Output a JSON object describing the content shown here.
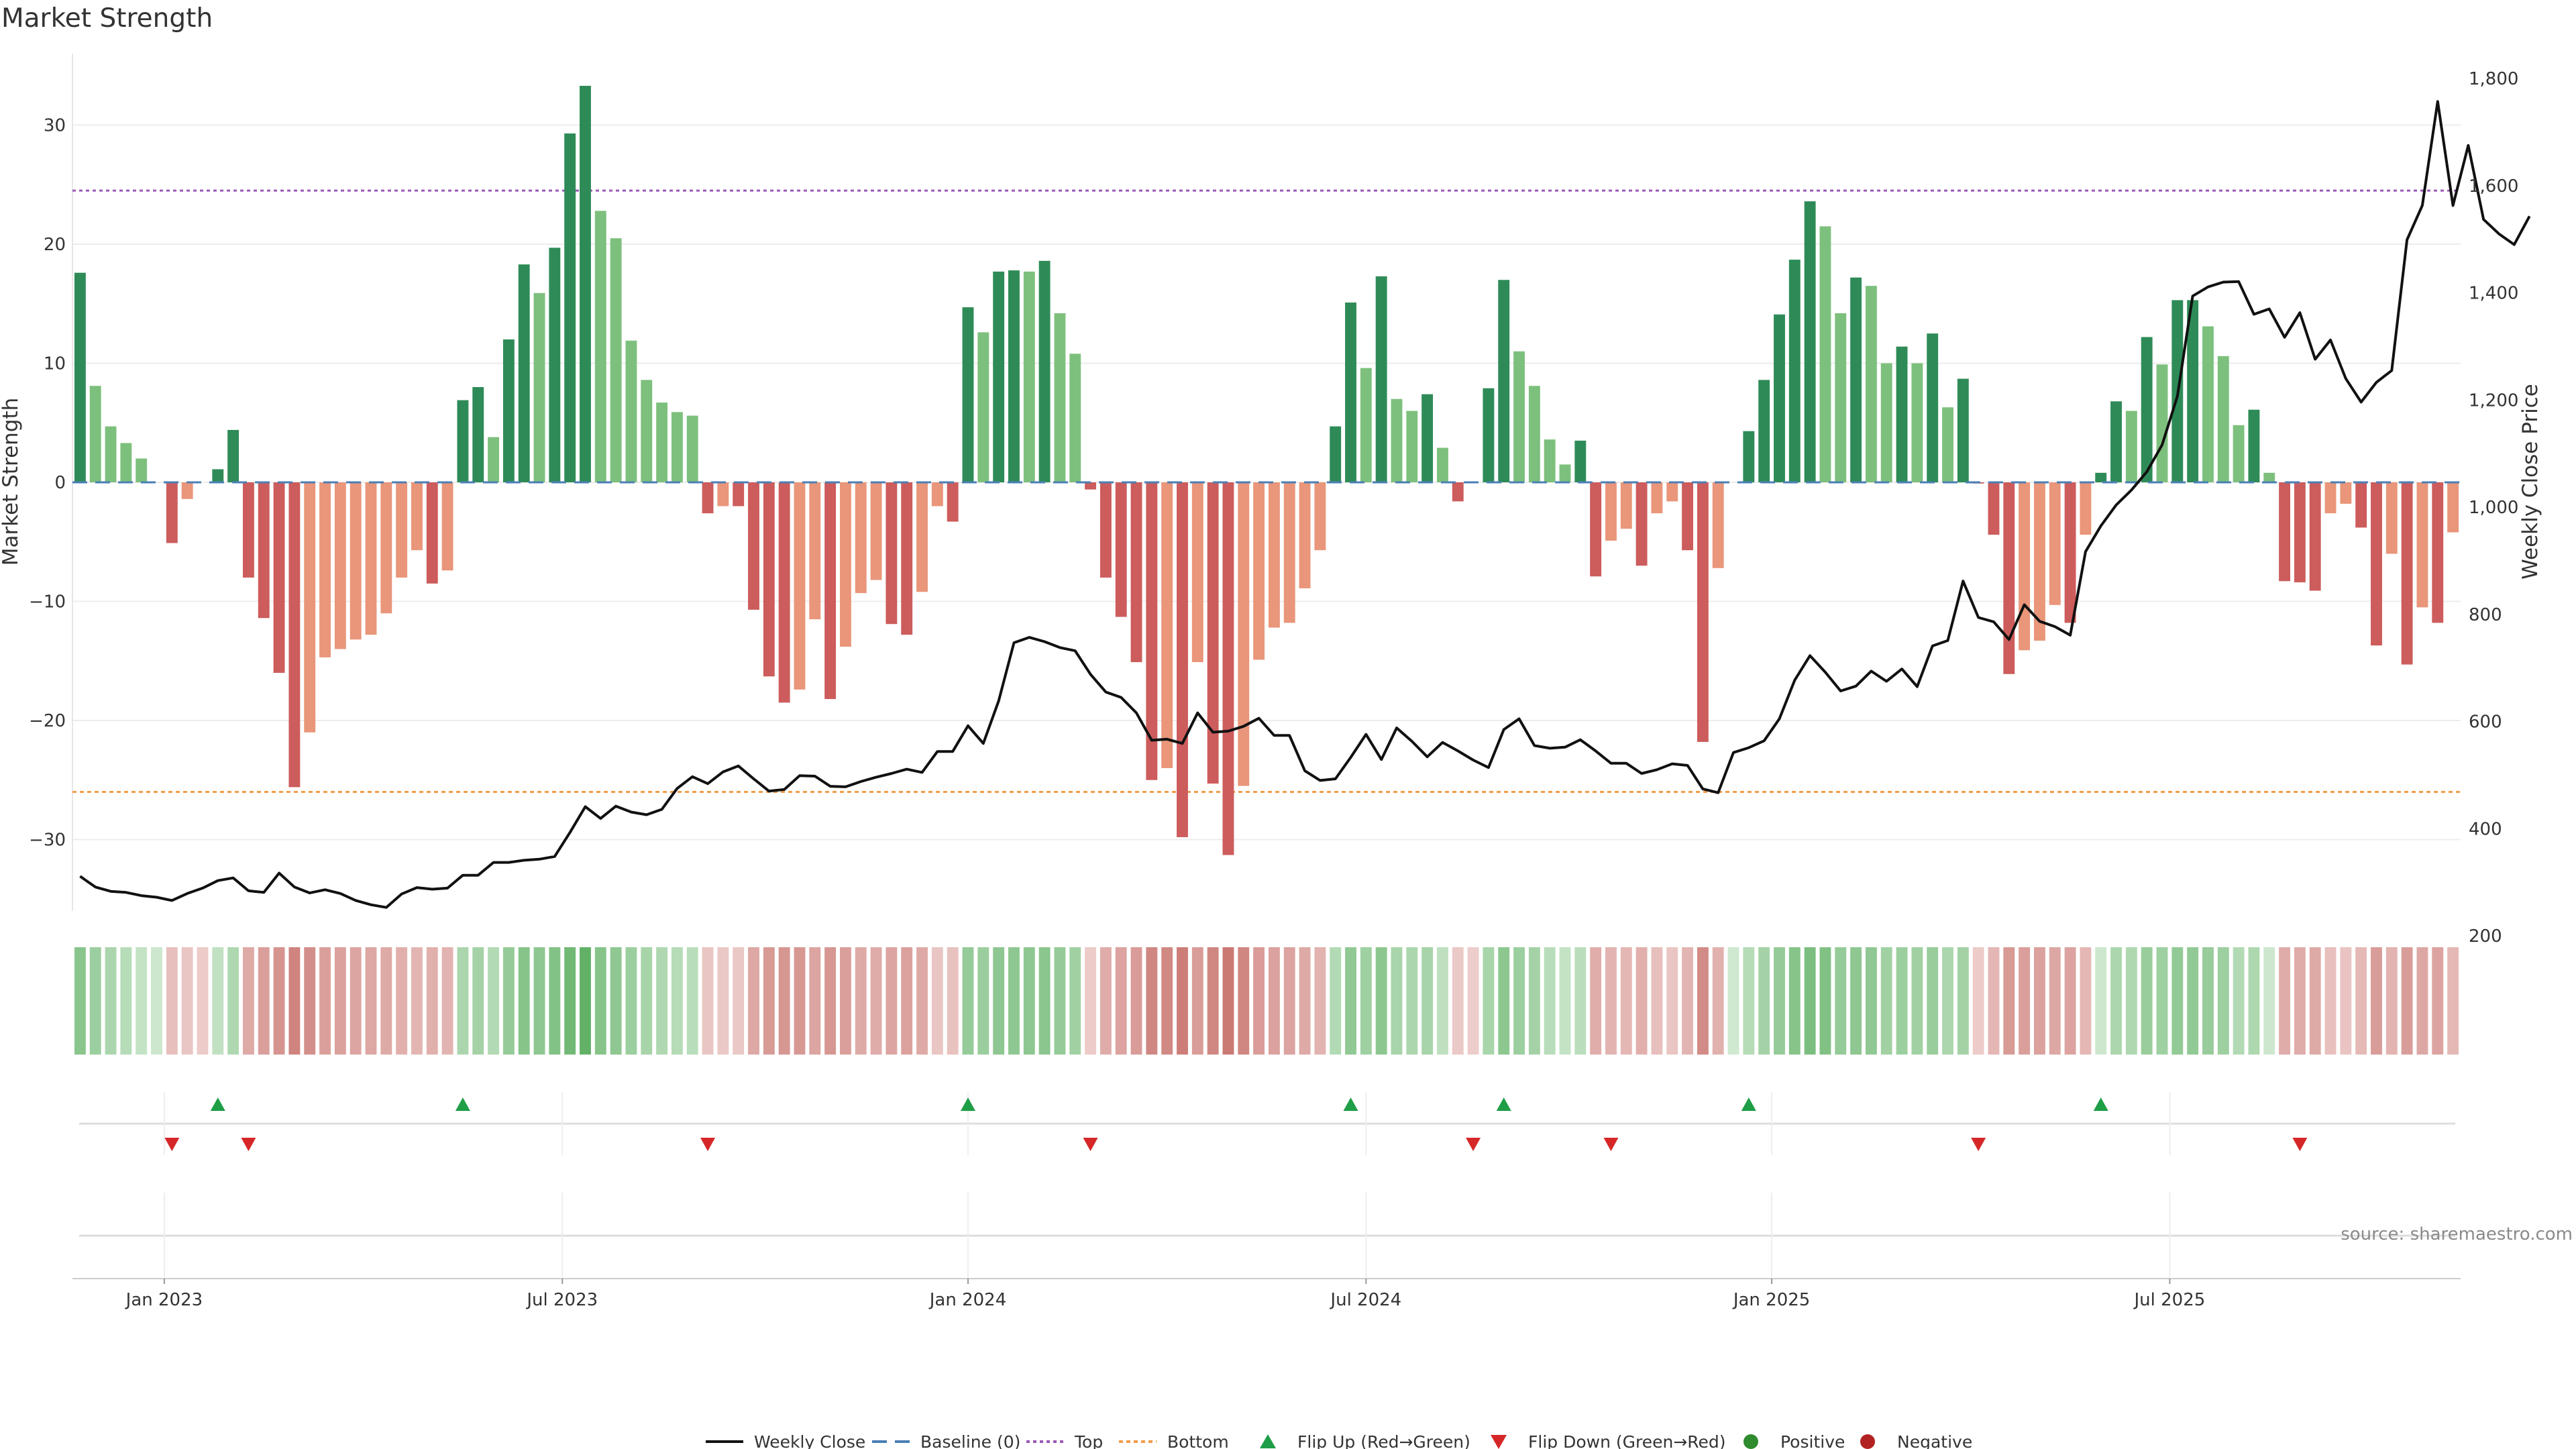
{
  "chart_data": {
    "type": "bar",
    "title": "Market Strength",
    "y_left_label": "Market Strength",
    "y_right_label": "Weekly Close Price",
    "y_left_range": [
      -36,
      36
    ],
    "y_left_ticks": [
      30,
      20,
      10,
      0,
      -10,
      -20,
      -30
    ],
    "y_right_range": [
      200,
      1800
    ],
    "y_right_ticks": [
      "1,800",
      "1,600",
      "1,400",
      "1,200",
      "1,000",
      "800",
      "600",
      "400",
      "200"
    ],
    "top_line": 24.5,
    "bottom_line": -26,
    "x_tick_labels": [
      "Jan 2023",
      "Jul 2023",
      "Jan 2024",
      "Jul 2024",
      "Jan 2025",
      "Jul 2025"
    ],
    "source": "source: sharemaestro.com",
    "colors": {
      "green_dark": "#2e8b57",
      "green_light": "#7dc07d",
      "red_dark": "#cd5c5c",
      "red_light": "#e9967a",
      "price_line": "#111111",
      "baseline": "#4a7fb5",
      "top_line": "#9b59b6",
      "bottom_line": "#f39c4a",
      "flip_up": "#1e9e46",
      "flip_down": "#d62728",
      "positive": "#2e8b2e",
      "negative": "#b22222"
    },
    "strength": [
      17.6,
      8.1,
      4.7,
      3.3,
      2.0,
      0.0,
      -5.1,
      -1.4,
      0.0,
      1.1,
      4.4,
      -8.0,
      -11.4,
      -16.0,
      -25.6,
      -21.0,
      -14.7,
      -14.0,
      -13.2,
      -12.8,
      -11.0,
      -8.0,
      -5.7,
      -8.5,
      -7.4,
      6.9,
      8.0,
      3.8,
      12.0,
      18.3,
      15.9,
      19.7,
      29.3,
      33.3,
      22.8,
      20.5,
      11.9,
      8.6,
      6.7,
      5.9,
      5.6,
      -2.6,
      -2.0,
      -2.0,
      -10.7,
      -16.3,
      -18.5,
      -17.4,
      -11.5,
      -18.2,
      -13.8,
      -9.3,
      -8.2,
      -11.9,
      -12.8,
      -9.2,
      -2.0,
      -3.3,
      14.7,
      12.6,
      17.7,
      17.8,
      17.7,
      18.6,
      14.2,
      10.8,
      -0.6,
      -8.0,
      -11.3,
      -15.1,
      -25.0,
      -24.0,
      -29.8,
      -15.1,
      -25.3,
      -31.3,
      -25.5,
      -14.9,
      -12.2,
      -11.8,
      -8.9,
      -5.7,
      4.7,
      15.1,
      9.6,
      17.3,
      7.0,
      6.0,
      7.4,
      2.9,
      -1.6,
      0.0,
      7.9,
      17.0,
      11.0,
      8.1,
      3.6,
      1.5,
      3.5,
      -7.9,
      -4.9,
      -3.9,
      -7.0,
      -2.6,
      -1.6,
      -5.7,
      -21.8,
      -7.2,
      0.0,
      4.3,
      8.6,
      14.1,
      18.7,
      23.6,
      21.5,
      14.2,
      17.2,
      16.5,
      10.0,
      11.4,
      10.0,
      12.5,
      6.3,
      8.7,
      -0.1,
      -4.4,
      -16.1,
      -14.1,
      -13.3,
      -10.3,
      -11.8,
      -4.4,
      0.8,
      6.8,
      6.0,
      12.2,
      9.9,
      15.3,
      15.3,
      13.1,
      10.6,
      4.8,
      6.1,
      0.8,
      -8.3,
      -8.4,
      -9.1,
      -2.6,
      -1.8,
      -3.8,
      -13.7,
      -6.0,
      -15.3,
      -10.5,
      -11.8,
      -4.2
    ],
    "price": [
      311,
      291,
      283,
      281,
      275,
      272,
      266,
      279,
      289,
      303,
      308,
      284,
      281,
      317,
      291,
      280,
      286,
      279,
      266,
      258,
      253,
      278,
      290,
      287,
      289,
      313,
      313,
      337,
      337,
      341,
      343,
      348,
      393,
      441,
      419,
      442,
      431,
      426,
      436,
      475,
      497,
      484,
      506,
      517,
      493,
      470,
      473,
      499,
      498,
      479,
      478,
      488,
      496,
      503,
      511,
      505,
      544,
      544,
      592,
      559,
      638,
      747,
      757,
      749,
      738,
      732,
      688,
      655,
      645,
      616,
      565,
      567,
      559,
      616,
      580,
      582,
      591,
      606,
      574,
      574,
      508,
      490,
      493,
      533,
      576,
      529,
      588,
      563,
      534,
      561,
      545,
      528,
      514,
      585,
      605,
      555,
      550,
      552,
      566,
      545,
      522,
      522,
      503,
      510,
      521,
      518,
      474,
      467,
      542,
      551,
      564,
      605,
      677,
      723,
      692,
      657,
      666,
      694,
      675,
      698,
      665,
      741,
      751,
      862,
      794,
      786,
      753,
      818,
      787,
      777,
      761,
      917,
      965,
      1004,
      1032,
      1066,
      1116,
      1207,
      1394,
      1411,
      1420,
      1421,
      1360,
      1370,
      1317,
      1363,
      1276,
      1312,
      1240,
      1196,
      1233,
      1255,
      1499,
      1563,
      1757,
      1563,
      1675,
      1537,
      1510,
      1490,
      1543
    ],
    "heat_strip": [
      0.58,
      0.45,
      0.35,
      0.27,
      0.18,
      0.12,
      -0.2,
      -0.15,
      -0.1,
      0.2,
      0.32,
      -0.4,
      -0.5,
      -0.6,
      -0.75,
      -0.65,
      -0.5,
      -0.48,
      -0.45,
      -0.43,
      -0.4,
      -0.35,
      -0.3,
      -0.35,
      -0.32,
      0.35,
      0.4,
      0.3,
      0.5,
      0.6,
      0.55,
      0.62,
      0.75,
      0.85,
      0.6,
      0.55,
      0.45,
      0.38,
      0.32,
      0.28,
      0.26,
      -0.15,
      -0.13,
      -0.13,
      -0.42,
      -0.55,
      -0.58,
      -0.56,
      -0.45,
      -0.58,
      -0.5,
      -0.4,
      -0.38,
      -0.45,
      -0.48,
      -0.4,
      -0.15,
      -0.18,
      0.5,
      0.46,
      0.55,
      0.55,
      0.55,
      0.57,
      0.5,
      0.42,
      -0.1,
      -0.38,
      -0.46,
      -0.53,
      -0.72,
      -0.7,
      -0.8,
      -0.53,
      -0.72,
      -0.85,
      -0.72,
      -0.53,
      -0.47,
      -0.46,
      -0.4,
      -0.32,
      0.3,
      0.53,
      0.43,
      0.56,
      0.37,
      0.34,
      0.38,
      0.22,
      -0.12,
      -0.08,
      0.37,
      0.56,
      0.45,
      0.4,
      0.26,
      0.18,
      0.25,
      -0.37,
      -0.31,
      -0.28,
      -0.35,
      -0.2,
      -0.15,
      -0.3,
      -0.68,
      -0.34,
      0.1,
      0.28,
      0.4,
      0.5,
      0.6,
      0.68,
      0.64,
      0.5,
      0.55,
      0.54,
      0.42,
      0.45,
      0.42,
      0.47,
      0.34,
      0.4,
      -0.1,
      -0.28,
      -0.55,
      -0.5,
      -0.48,
      -0.43,
      -0.46,
      -0.28,
      0.12,
      0.34,
      0.32,
      0.47,
      0.43,
      0.52,
      0.52,
      0.48,
      0.44,
      0.3,
      0.33,
      0.12,
      -0.38,
      -0.38,
      -0.4,
      -0.2,
      -0.16,
      -0.26,
      -0.52,
      -0.32,
      -0.52,
      -0.43,
      -0.46,
      -0.27
    ],
    "flip_up_weeks": [
      9,
      25,
      58,
      83,
      93,
      109,
      132
    ],
    "flip_down_weeks": [
      6,
      11,
      41,
      66,
      91,
      100,
      124,
      145
    ],
    "legend": [
      "Weekly Close",
      "Baseline (0)",
      "Top",
      "Bottom",
      "Flip Up (Red→Green)",
      "Flip Down (Green→Red)",
      "Positive",
      "Negative"
    ]
  }
}
